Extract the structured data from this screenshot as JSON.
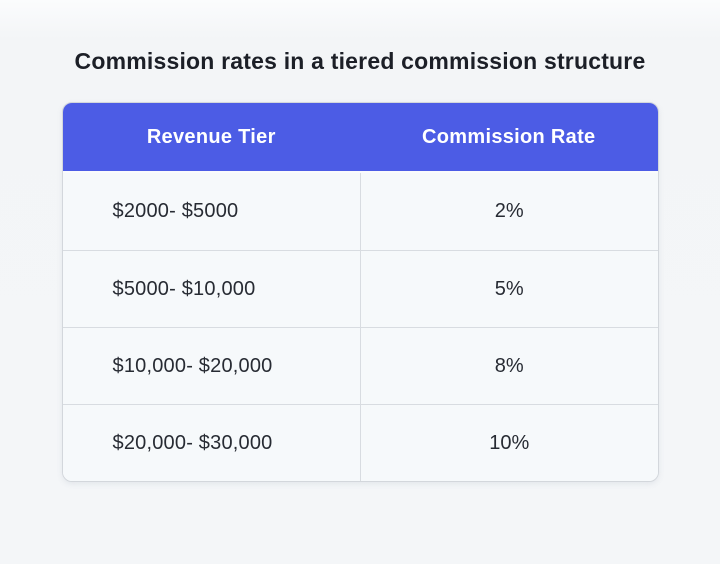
{
  "page": {
    "title": "Commission rates in a tiered commission structure"
  },
  "table": {
    "columns": [
      {
        "label": "Revenue Tier"
      },
      {
        "label": "Commission Rate"
      }
    ],
    "rows": [
      {
        "tier": "$2000- $5000",
        "rate": "2%"
      },
      {
        "tier": "$5000- $10,000",
        "rate": "5%"
      },
      {
        "tier": "$10,000- $20,000",
        "rate": "8%"
      },
      {
        "tier": "$20,000- $30,000",
        "rate": "10%"
      }
    ]
  },
  "chart_data": {
    "type": "table",
    "title": "Commission rates in a tiered commission structure",
    "columns": [
      "Revenue Tier",
      "Commission Rate"
    ],
    "rows": [
      [
        "$2000- $5000",
        "2%"
      ],
      [
        "$5000- $10,000",
        "5%"
      ],
      [
        "$10,000- $20,000",
        "8%"
      ],
      [
        "$20,000- $30,000",
        "10%"
      ]
    ],
    "tier_bounds_usd": [
      [
        2000,
        5000
      ],
      [
        5000,
        10000
      ],
      [
        10000,
        20000
      ],
      [
        20000,
        30000
      ]
    ],
    "commission_rates_percent": [
      2,
      5,
      8,
      10
    ]
  },
  "colors": {
    "header_bg": "#4c5ce5",
    "header_text": "#ffffff",
    "row_bg": "#f6f9fb",
    "border": "#d8dce1",
    "title_text": "#1c1f27",
    "cell_text": "#272b33",
    "page_bg": "#f4f6f8"
  }
}
